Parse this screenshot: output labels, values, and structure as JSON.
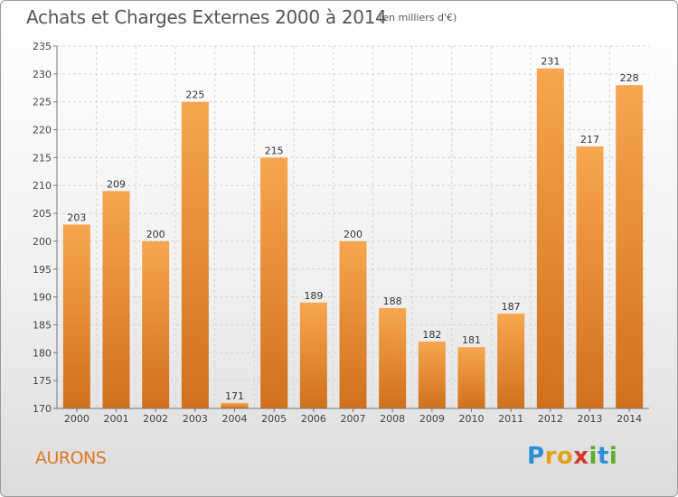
{
  "header": {
    "title": "Achats et Charges Externes 2000 à 2014",
    "subtitle": "(en milliers d'€)"
  },
  "footer": {
    "commune": "AURONS",
    "logo": "Proxiti"
  },
  "colors": {
    "bar_light": "#f7a64f",
    "bar_dark": "#d0701c",
    "commune_text": "#e07820"
  },
  "chart_data": {
    "type": "bar",
    "title": "Achats et Charges Externes 2000 à 2014",
    "subtitle": "(en milliers d'€)",
    "categories": [
      "2000",
      "2001",
      "2002",
      "2003",
      "2004",
      "2005",
      "2006",
      "2007",
      "2008",
      "2009",
      "2010",
      "2011",
      "2012",
      "2013",
      "2014"
    ],
    "values": [
      203,
      209,
      200,
      225,
      171,
      215,
      189,
      200,
      188,
      182,
      181,
      187,
      231,
      217,
      228
    ],
    "ylim": [
      170,
      235
    ],
    "yticks": [
      170,
      175,
      180,
      185,
      190,
      195,
      200,
      205,
      210,
      215,
      220,
      225,
      230,
      235
    ],
    "grid": true,
    "xlabel": "",
    "ylabel": ""
  }
}
